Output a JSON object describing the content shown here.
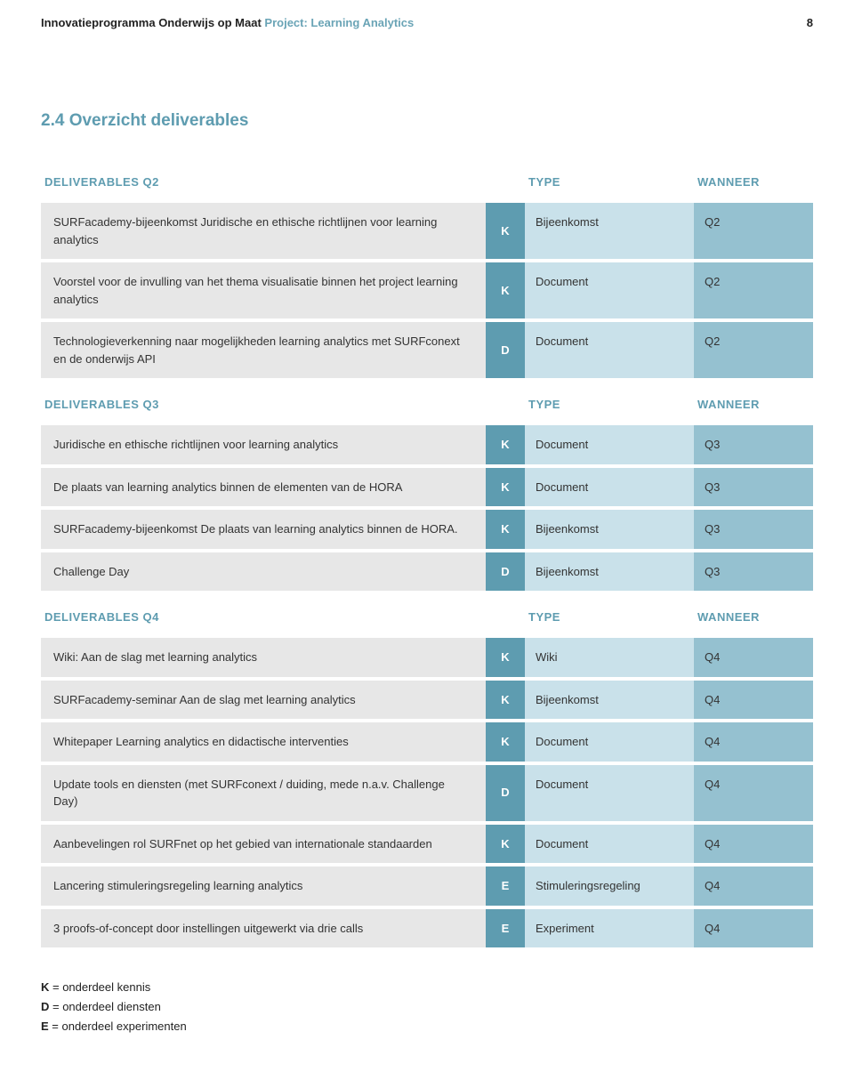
{
  "header": {
    "program": "Innovatieprogramma Onderwijs op Maat",
    "project": "Project: Learning Analytics",
    "page_number": "8"
  },
  "section_title": "2.4 Overzicht deliverables",
  "columns": {
    "label_blank": "",
    "type": "TYPE",
    "wanneer": "WANNEER"
  },
  "groups": [
    {
      "heading": "DELIVERABLES Q2",
      "rows": [
        {
          "desc": "SURFacademy-bijeenkomst Juridische en ethische richtlijnen voor learning analytics",
          "code": "K",
          "type": "Bijeenkomst",
          "when": "Q2"
        },
        {
          "desc": "Voorstel voor de invulling van het thema visualisatie binnen het project learning analytics",
          "code": "K",
          "type": "Document",
          "when": "Q2"
        },
        {
          "desc": "Technologieverkenning naar mogelijkheden learning analytics met SURFconext en de onderwijs API",
          "code": "D",
          "type": "Document",
          "when": "Q2"
        }
      ]
    },
    {
      "heading": "DELIVERABLES Q3",
      "rows": [
        {
          "desc": "Juridische en ethische richtlijnen voor learning analytics",
          "code": "K",
          "type": "Document",
          "when": "Q3"
        },
        {
          "desc": "De plaats van learning analytics binnen de elementen van de HORA",
          "code": "K",
          "type": "Document",
          "when": "Q3"
        },
        {
          "desc": "SURFacademy-bijeenkomst De plaats van learning analytics binnen de HORA.",
          "code": "K",
          "type": "Bijeenkomst",
          "when": "Q3"
        },
        {
          "desc": "Challenge Day",
          "code": "D",
          "type": "Bijeenkomst",
          "when": "Q3"
        }
      ]
    },
    {
      "heading": "DELIVERABLES Q4",
      "rows": [
        {
          "desc": "Wiki: Aan de slag met learning analytics",
          "code": "K",
          "type": "Wiki",
          "when": "Q4"
        },
        {
          "desc": "SURFacademy-seminar Aan de slag met learning analytics",
          "code": "K",
          "type": "Bijeenkomst",
          "when": "Q4"
        },
        {
          "desc": "Whitepaper Learning analytics en didactische interventies",
          "code": "K",
          "type": "Document",
          "when": "Q4"
        },
        {
          "desc": "Update tools en diensten (met SURFconext / duiding, mede n.a.v. Challenge Day)",
          "code": "D",
          "type": "Document",
          "when": "Q4"
        },
        {
          "desc": "Aanbevelingen rol SURFnet op het gebied van internationale standaarden",
          "code": "K",
          "type": "Document",
          "when": "Q4"
        },
        {
          "desc": "Lancering stimuleringsregeling learning analytics",
          "code": "E",
          "type": "Stimulerings­regeling",
          "when": "Q4"
        },
        {
          "desc": "3 proofs-of-concept door instellingen uitgewerkt via drie calls",
          "code": "E",
          "type": "Experiment",
          "when": "Q4"
        }
      ]
    }
  ],
  "legend": [
    {
      "key": "K",
      "text": " = onderdeel kennis"
    },
    {
      "key": "D",
      "text": " = onderdeel diensten"
    },
    {
      "key": "E",
      "text": " = onderdeel experimenten"
    }
  ],
  "colors": {
    "accent": "#5e9cb0",
    "desc_bg": "#e7e7e7",
    "code_bg": "#5e9cb0",
    "type_bg": "#c9e1ea",
    "when_bg": "#95c1d0"
  }
}
